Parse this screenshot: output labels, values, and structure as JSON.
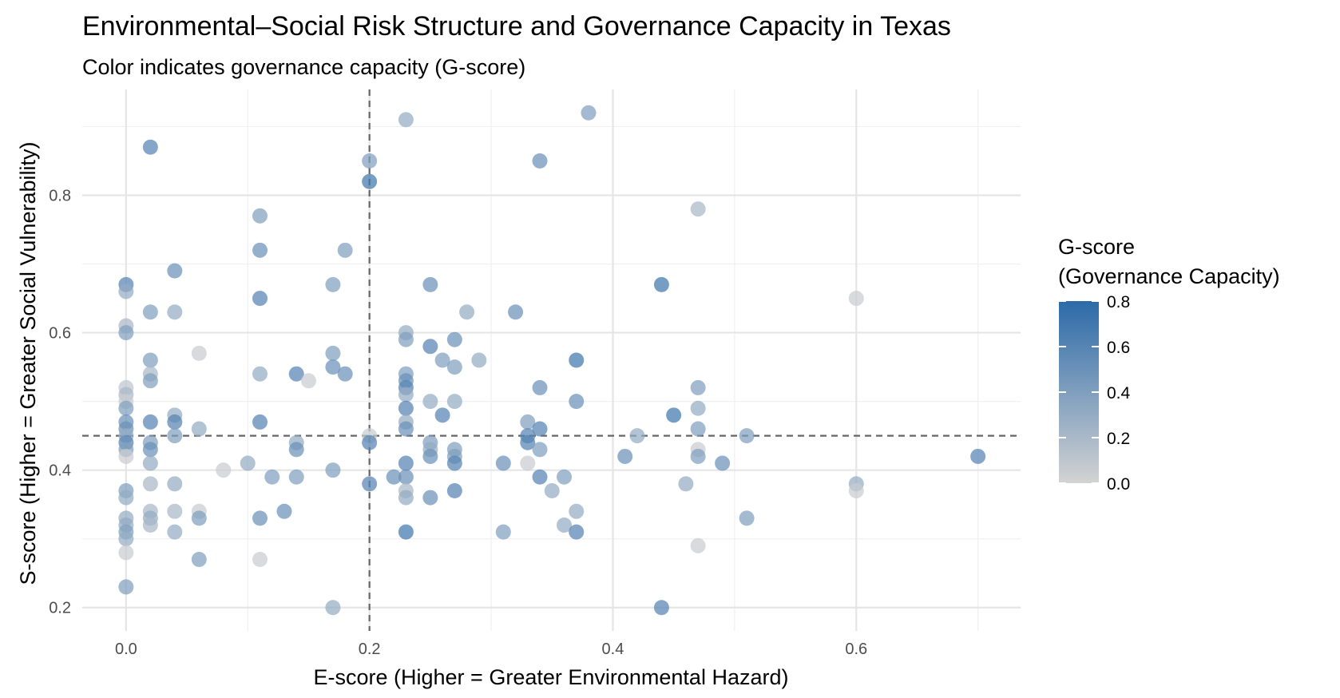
{
  "chart_data": {
    "type": "scatter",
    "title": "Environmental–Social Risk Structure and Governance Capacity in Texas",
    "subtitle": "Color indicates governance capacity (G-score)",
    "xlabel": "E-score (Higher = Greater Environmental Hazard)",
    "ylabel": "S-score (Higher = Greater Social Vulnerability)",
    "xlim": [
      -0.036,
      0.735
    ],
    "ylim": [
      0.166,
      0.954
    ],
    "x_ticks": [
      0.0,
      0.2,
      0.4,
      0.6
    ],
    "x_tick_labels": [
      "0.0",
      "0.2",
      "0.4",
      "0.6"
    ],
    "y_ticks": [
      0.2,
      0.4,
      0.6,
      0.8
    ],
    "y_tick_labels": [
      "0.2",
      "0.4",
      "0.6",
      "0.8"
    ],
    "grid": true,
    "reference_lines": {
      "vertical_x": 0.2,
      "horizontal_y": 0.45
    },
    "legend": {
      "title_line1": "G-score",
      "title_line2": "(Governance Capacity)",
      "position": "right",
      "range": [
        0.0,
        0.8
      ],
      "ticks": [
        0.0,
        0.2,
        0.4,
        0.6,
        0.8
      ],
      "tick_labels": [
        "0.0",
        "0.2",
        "0.4",
        "0.6",
        "0.8"
      ],
      "low_color": "#d3d3d3",
      "high_color": "#2c6aa8"
    },
    "points": [
      {
        "x": 0.0,
        "y": 0.67,
        "g": 0.6
      },
      {
        "x": 0.0,
        "y": 0.66,
        "g": 0.3
      },
      {
        "x": 0.0,
        "y": 0.61,
        "g": 0.2
      },
      {
        "x": 0.0,
        "y": 0.6,
        "g": 0.4
      },
      {
        "x": 0.0,
        "y": 0.52,
        "g": 0.1
      },
      {
        "x": 0.0,
        "y": 0.51,
        "g": 0.2
      },
      {
        "x": 0.0,
        "y": 0.5,
        "g": 0.05
      },
      {
        "x": 0.0,
        "y": 0.49,
        "g": 0.4
      },
      {
        "x": 0.0,
        "y": 0.47,
        "g": 0.5
      },
      {
        "x": 0.0,
        "y": 0.46,
        "g": 0.5
      },
      {
        "x": 0.0,
        "y": 0.45,
        "g": 0.3
      },
      {
        "x": 0.0,
        "y": 0.44,
        "g": 0.6
      },
      {
        "x": 0.0,
        "y": 0.43,
        "g": 0.4
      },
      {
        "x": 0.0,
        "y": 0.42,
        "g": 0.05
      },
      {
        "x": 0.0,
        "y": 0.37,
        "g": 0.4
      },
      {
        "x": 0.0,
        "y": 0.36,
        "g": 0.3
      },
      {
        "x": 0.0,
        "y": 0.33,
        "g": 0.3
      },
      {
        "x": 0.0,
        "y": 0.32,
        "g": 0.3
      },
      {
        "x": 0.0,
        "y": 0.31,
        "g": 0.4
      },
      {
        "x": 0.0,
        "y": 0.3,
        "g": 0.3
      },
      {
        "x": 0.0,
        "y": 0.28,
        "g": 0.05
      },
      {
        "x": 0.0,
        "y": 0.23,
        "g": 0.4
      },
      {
        "x": 0.02,
        "y": 0.87,
        "g": 0.6
      },
      {
        "x": 0.02,
        "y": 0.63,
        "g": 0.4
      },
      {
        "x": 0.02,
        "y": 0.56,
        "g": 0.4
      },
      {
        "x": 0.02,
        "y": 0.54,
        "g": 0.2
      },
      {
        "x": 0.02,
        "y": 0.53,
        "g": 0.4
      },
      {
        "x": 0.02,
        "y": 0.47,
        "g": 0.6
      },
      {
        "x": 0.02,
        "y": 0.44,
        "g": 0.4
      },
      {
        "x": 0.02,
        "y": 0.43,
        "g": 0.5
      },
      {
        "x": 0.02,
        "y": 0.41,
        "g": 0.3
      },
      {
        "x": 0.02,
        "y": 0.38,
        "g": 0.2
      },
      {
        "x": 0.02,
        "y": 0.34,
        "g": 0.2
      },
      {
        "x": 0.02,
        "y": 0.33,
        "g": 0.3
      },
      {
        "x": 0.02,
        "y": 0.32,
        "g": 0.2
      },
      {
        "x": 0.04,
        "y": 0.69,
        "g": 0.5
      },
      {
        "x": 0.04,
        "y": 0.63,
        "g": 0.3
      },
      {
        "x": 0.04,
        "y": 0.48,
        "g": 0.3
      },
      {
        "x": 0.04,
        "y": 0.47,
        "g": 0.6
      },
      {
        "x": 0.04,
        "y": 0.45,
        "g": 0.4
      },
      {
        "x": 0.04,
        "y": 0.38,
        "g": 0.3
      },
      {
        "x": 0.04,
        "y": 0.34,
        "g": 0.2
      },
      {
        "x": 0.04,
        "y": 0.31,
        "g": 0.3
      },
      {
        "x": 0.06,
        "y": 0.57,
        "g": 0.05
      },
      {
        "x": 0.06,
        "y": 0.46,
        "g": 0.3
      },
      {
        "x": 0.06,
        "y": 0.34,
        "g": 0.05
      },
      {
        "x": 0.06,
        "y": 0.33,
        "g": 0.4
      },
      {
        "x": 0.06,
        "y": 0.27,
        "g": 0.4
      },
      {
        "x": 0.08,
        "y": 0.4,
        "g": 0.05
      },
      {
        "x": 0.1,
        "y": 0.41,
        "g": 0.3
      },
      {
        "x": 0.11,
        "y": 0.77,
        "g": 0.4
      },
      {
        "x": 0.11,
        "y": 0.72,
        "g": 0.5
      },
      {
        "x": 0.11,
        "y": 0.65,
        "g": 0.6
      },
      {
        "x": 0.11,
        "y": 0.54,
        "g": 0.3
      },
      {
        "x": 0.11,
        "y": 0.47,
        "g": 0.6
      },
      {
        "x": 0.11,
        "y": 0.33,
        "g": 0.5
      },
      {
        "x": 0.11,
        "y": 0.27,
        "g": 0.05
      },
      {
        "x": 0.12,
        "y": 0.39,
        "g": 0.4
      },
      {
        "x": 0.13,
        "y": 0.34,
        "g": 0.5
      },
      {
        "x": 0.14,
        "y": 0.54,
        "g": 0.6
      },
      {
        "x": 0.14,
        "y": 0.44,
        "g": 0.3
      },
      {
        "x": 0.14,
        "y": 0.43,
        "g": 0.5
      },
      {
        "x": 0.14,
        "y": 0.39,
        "g": 0.4
      },
      {
        "x": 0.15,
        "y": 0.53,
        "g": 0.05
      },
      {
        "x": 0.17,
        "y": 0.67,
        "g": 0.4
      },
      {
        "x": 0.17,
        "y": 0.57,
        "g": 0.4
      },
      {
        "x": 0.17,
        "y": 0.55,
        "g": 0.5
      },
      {
        "x": 0.17,
        "y": 0.4,
        "g": 0.4
      },
      {
        "x": 0.17,
        "y": 0.2,
        "g": 0.3
      },
      {
        "x": 0.18,
        "y": 0.72,
        "g": 0.4
      },
      {
        "x": 0.18,
        "y": 0.54,
        "g": 0.5
      },
      {
        "x": 0.2,
        "y": 0.85,
        "g": 0.4
      },
      {
        "x": 0.2,
        "y": 0.82,
        "g": 0.7
      },
      {
        "x": 0.2,
        "y": 0.45,
        "g": 0.05
      },
      {
        "x": 0.2,
        "y": 0.44,
        "g": 0.6
      },
      {
        "x": 0.2,
        "y": 0.38,
        "g": 0.6
      },
      {
        "x": 0.22,
        "y": 0.39,
        "g": 0.5
      },
      {
        "x": 0.23,
        "y": 0.91,
        "g": 0.3
      },
      {
        "x": 0.23,
        "y": 0.6,
        "g": 0.3
      },
      {
        "x": 0.23,
        "y": 0.59,
        "g": 0.4
      },
      {
        "x": 0.23,
        "y": 0.54,
        "g": 0.4
      },
      {
        "x": 0.23,
        "y": 0.53,
        "g": 0.5
      },
      {
        "x": 0.23,
        "y": 0.52,
        "g": 0.6
      },
      {
        "x": 0.23,
        "y": 0.51,
        "g": 0.3
      },
      {
        "x": 0.23,
        "y": 0.49,
        "g": 0.6
      },
      {
        "x": 0.23,
        "y": 0.47,
        "g": 0.3
      },
      {
        "x": 0.23,
        "y": 0.46,
        "g": 0.5
      },
      {
        "x": 0.23,
        "y": 0.41,
        "g": 0.6
      },
      {
        "x": 0.23,
        "y": 0.39,
        "g": 0.5
      },
      {
        "x": 0.23,
        "y": 0.37,
        "g": 0.2
      },
      {
        "x": 0.23,
        "y": 0.36,
        "g": 0.3
      },
      {
        "x": 0.23,
        "y": 0.31,
        "g": 0.7
      },
      {
        "x": 0.25,
        "y": 0.67,
        "g": 0.5
      },
      {
        "x": 0.25,
        "y": 0.58,
        "g": 0.6
      },
      {
        "x": 0.25,
        "y": 0.5,
        "g": 0.3
      },
      {
        "x": 0.25,
        "y": 0.44,
        "g": 0.4
      },
      {
        "x": 0.25,
        "y": 0.43,
        "g": 0.3
      },
      {
        "x": 0.25,
        "y": 0.42,
        "g": 0.5
      },
      {
        "x": 0.25,
        "y": 0.36,
        "g": 0.5
      },
      {
        "x": 0.26,
        "y": 0.56,
        "g": 0.4
      },
      {
        "x": 0.26,
        "y": 0.48,
        "g": 0.6
      },
      {
        "x": 0.27,
        "y": 0.59,
        "g": 0.5
      },
      {
        "x": 0.27,
        "y": 0.55,
        "g": 0.4
      },
      {
        "x": 0.27,
        "y": 0.5,
        "g": 0.3
      },
      {
        "x": 0.27,
        "y": 0.43,
        "g": 0.4
      },
      {
        "x": 0.27,
        "y": 0.42,
        "g": 0.4
      },
      {
        "x": 0.27,
        "y": 0.41,
        "g": 0.6
      },
      {
        "x": 0.27,
        "y": 0.37,
        "g": 0.6
      },
      {
        "x": 0.28,
        "y": 0.63,
        "g": 0.3
      },
      {
        "x": 0.29,
        "y": 0.56,
        "g": 0.3
      },
      {
        "x": 0.31,
        "y": 0.41,
        "g": 0.5
      },
      {
        "x": 0.31,
        "y": 0.31,
        "g": 0.4
      },
      {
        "x": 0.32,
        "y": 0.63,
        "g": 0.5
      },
      {
        "x": 0.33,
        "y": 0.47,
        "g": 0.4
      },
      {
        "x": 0.33,
        "y": 0.45,
        "g": 0.6
      },
      {
        "x": 0.33,
        "y": 0.44,
        "g": 0.6
      },
      {
        "x": 0.33,
        "y": 0.41,
        "g": 0.05
      },
      {
        "x": 0.34,
        "y": 0.85,
        "g": 0.5
      },
      {
        "x": 0.34,
        "y": 0.52,
        "g": 0.5
      },
      {
        "x": 0.34,
        "y": 0.46,
        "g": 0.6
      },
      {
        "x": 0.34,
        "y": 0.43,
        "g": 0.4
      },
      {
        "x": 0.34,
        "y": 0.39,
        "g": 0.6
      },
      {
        "x": 0.35,
        "y": 0.37,
        "g": 0.3
      },
      {
        "x": 0.36,
        "y": 0.39,
        "g": 0.4
      },
      {
        "x": 0.36,
        "y": 0.32,
        "g": 0.3
      },
      {
        "x": 0.37,
        "y": 0.56,
        "g": 0.7
      },
      {
        "x": 0.37,
        "y": 0.5,
        "g": 0.5
      },
      {
        "x": 0.37,
        "y": 0.34,
        "g": 0.3
      },
      {
        "x": 0.37,
        "y": 0.31,
        "g": 0.6
      },
      {
        "x": 0.38,
        "y": 0.92,
        "g": 0.4
      },
      {
        "x": 0.41,
        "y": 0.42,
        "g": 0.5
      },
      {
        "x": 0.42,
        "y": 0.45,
        "g": 0.3
      },
      {
        "x": 0.44,
        "y": 0.67,
        "g": 0.7
      },
      {
        "x": 0.44,
        "y": 0.2,
        "g": 0.6
      },
      {
        "x": 0.45,
        "y": 0.48,
        "g": 0.7
      },
      {
        "x": 0.46,
        "y": 0.38,
        "g": 0.3
      },
      {
        "x": 0.47,
        "y": 0.78,
        "g": 0.2
      },
      {
        "x": 0.47,
        "y": 0.52,
        "g": 0.4
      },
      {
        "x": 0.47,
        "y": 0.49,
        "g": 0.3
      },
      {
        "x": 0.47,
        "y": 0.46,
        "g": 0.4
      },
      {
        "x": 0.47,
        "y": 0.43,
        "g": 0.05
      },
      {
        "x": 0.47,
        "y": 0.42,
        "g": 0.4
      },
      {
        "x": 0.47,
        "y": 0.29,
        "g": 0.05
      },
      {
        "x": 0.49,
        "y": 0.41,
        "g": 0.5
      },
      {
        "x": 0.51,
        "y": 0.45,
        "g": 0.4
      },
      {
        "x": 0.51,
        "y": 0.33,
        "g": 0.4
      },
      {
        "x": 0.6,
        "y": 0.65,
        "g": 0.05
      },
      {
        "x": 0.6,
        "y": 0.38,
        "g": 0.3
      },
      {
        "x": 0.6,
        "y": 0.37,
        "g": 0.05
      },
      {
        "x": 0.7,
        "y": 0.42,
        "g": 0.6
      }
    ]
  }
}
